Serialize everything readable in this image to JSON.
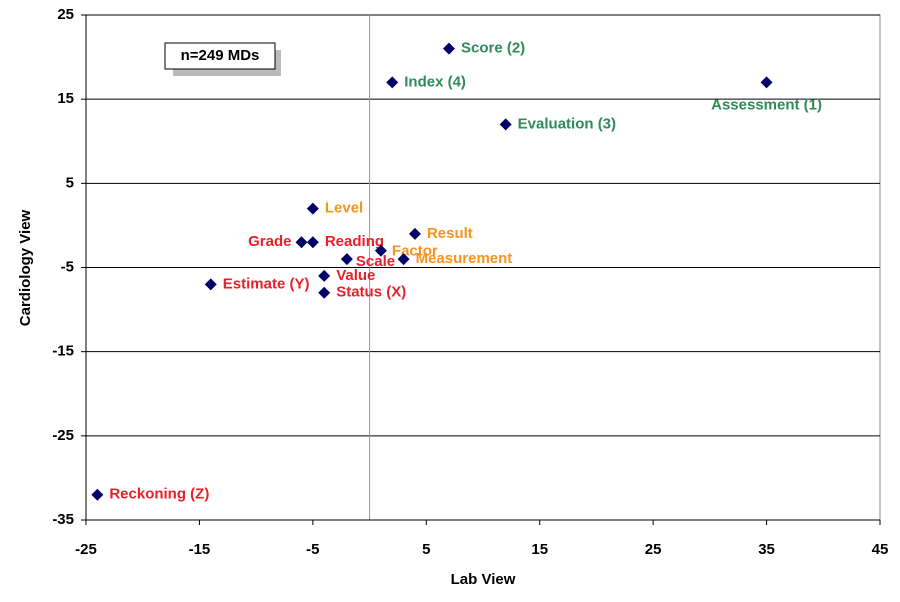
{
  "chart_data": {
    "type": "scatter",
    "annotation": "n=249 MDs",
    "x_label": "Lab View",
    "y_label": "Cardiology View",
    "xlim": [
      -25,
      45
    ],
    "xticks": [
      -25,
      -15,
      -5,
      5,
      15,
      25,
      35,
      45
    ],
    "ylim": [
      -35,
      25
    ],
    "yticks": [
      25,
      15,
      5,
      -5,
      -15,
      -25,
      -35
    ],
    "grid": true,
    "marker_color": "#000066",
    "points": [
      {
        "label": "Score (2)",
        "x": 7,
        "y": 21,
        "color": "#2e8b57"
      },
      {
        "label": "Index (4)",
        "x": 2,
        "y": 17,
        "color": "#2e8b57"
      },
      {
        "label": "Assessment (1)",
        "x": 35,
        "y": 17,
        "color": "#2e8b57"
      },
      {
        "label": "Evaluation (3)",
        "x": 12,
        "y": 12,
        "color": "#2e8b57"
      },
      {
        "label": "Level",
        "x": -5,
        "y": 2,
        "color": "#f7941d"
      },
      {
        "label": "Grade",
        "x": -6,
        "y": -2,
        "color": "#e8202a"
      },
      {
        "label": "Reading",
        "x": -5,
        "y": -2,
        "color": "#e8202a"
      },
      {
        "label": "Result",
        "x": 4,
        "y": -1,
        "color": "#f7941d"
      },
      {
        "label": "Factor",
        "x": 1,
        "y": -3,
        "color": "#f7941d"
      },
      {
        "label": "Measurement",
        "x": 3,
        "y": -4,
        "color": "#f7941d"
      },
      {
        "label": "Scale",
        "x": -2,
        "y": -4,
        "color": "#e8202a"
      },
      {
        "label": "Value",
        "x": -4,
        "y": -6,
        "color": "#e8202a"
      },
      {
        "label": "Status (X)",
        "x": -4,
        "y": -8,
        "color": "#e8202a"
      },
      {
        "label": "Estimate (Y)",
        "x": -14,
        "y": -7,
        "color": "#e8202a"
      },
      {
        "label": "Reckoning (Z)",
        "x": -24,
        "y": -32,
        "color": "#e8202a"
      }
    ]
  }
}
